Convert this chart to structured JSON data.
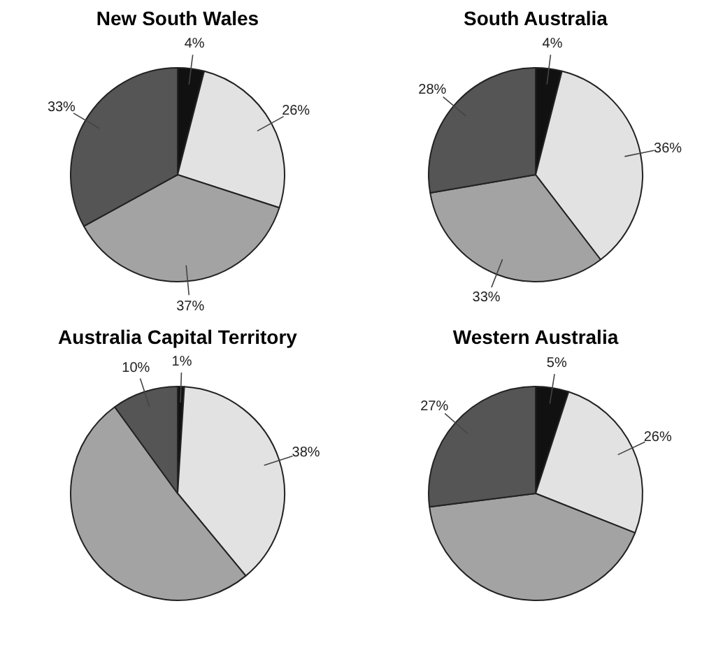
{
  "chart_data": [
    {
      "type": "pie",
      "title": "New South Wales",
      "categories": [
        null,
        null,
        null,
        null
      ],
      "values": [
        4,
        26,
        37,
        33
      ],
      "colors": [
        "#111111",
        "#e2e2e2",
        "#a3a3a3",
        "#555555"
      ],
      "value_labels": [
        "4%",
        "26%",
        "37%",
        "33%"
      ]
    },
    {
      "type": "pie",
      "title": "South Australia",
      "categories": [
        null,
        null,
        null,
        null
      ],
      "values": [
        4,
        36,
        33,
        28
      ],
      "colors": [
        "#111111",
        "#e2e2e2",
        "#a3a3a3",
        "#555555"
      ],
      "value_labels": [
        "4%",
        "36%",
        "33%",
        "28%"
      ]
    },
    {
      "type": "pie",
      "title": "Australia Capital Territory",
      "categories": [
        null,
        null,
        null,
        null
      ],
      "values": [
        1,
        38,
        51,
        10
      ],
      "colors": [
        "#111111",
        "#e2e2e2",
        "#a3a3a3",
        "#555555"
      ],
      "value_labels": [
        "1%",
        "38%",
        null,
        "10%"
      ]
    },
    {
      "type": "pie",
      "title": "Western Australia",
      "categories": [
        null,
        null,
        null,
        null
      ],
      "values": [
        5,
        26,
        42,
        27
      ],
      "colors": [
        "#111111",
        "#e2e2e2",
        "#a3a3a3",
        "#555555"
      ],
      "value_labels": [
        "5%",
        "26%",
        null,
        "27%"
      ]
    }
  ]
}
